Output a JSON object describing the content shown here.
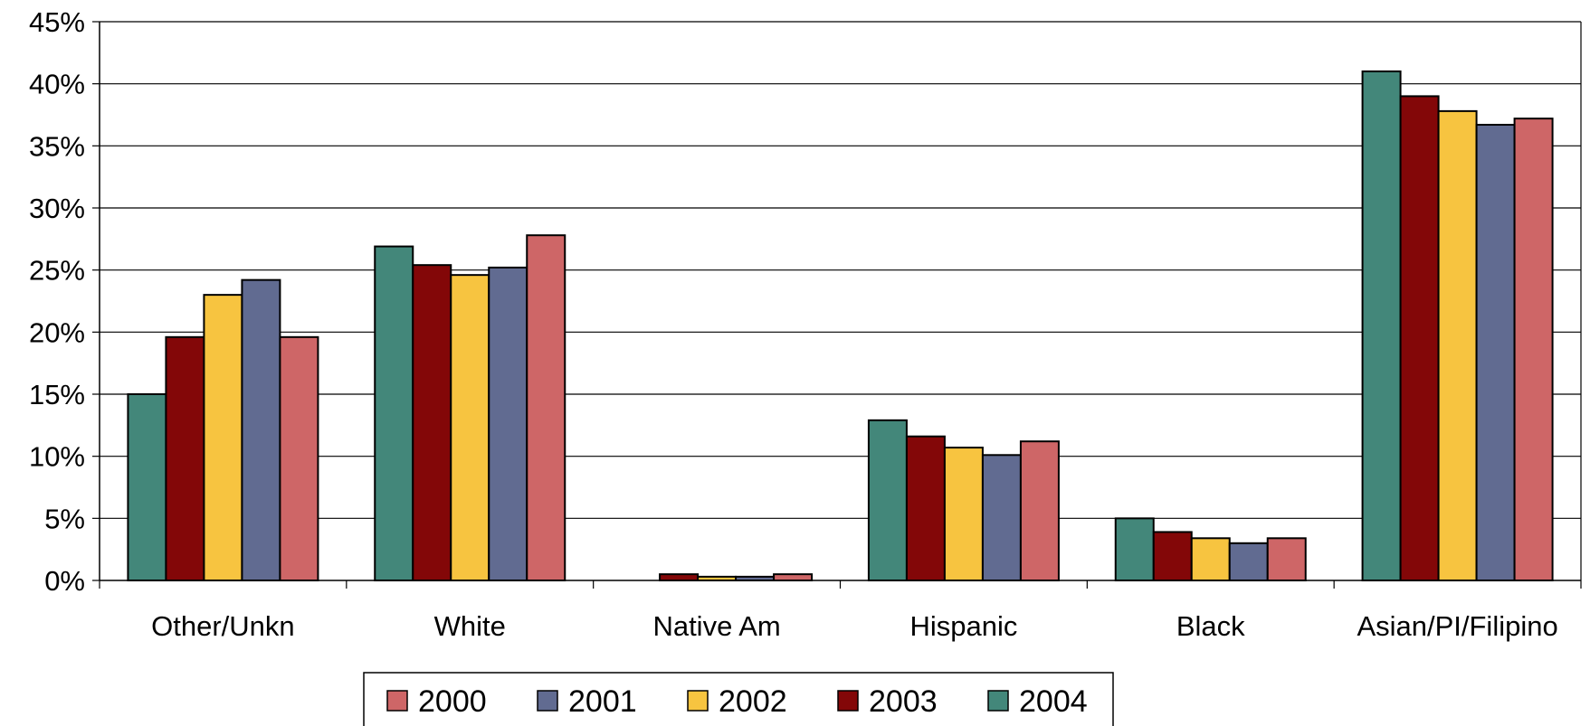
{
  "chart_data": {
    "type": "bar",
    "title": "",
    "xlabel": "",
    "ylabel": "",
    "categories": [
      "Other/Unkn",
      "White",
      "Native Am",
      "Hispanic",
      "Black",
      "Asian/PI/Filipino"
    ],
    "ylim": [
      0,
      45
    ],
    "y_ticks": [
      "0%",
      "5%",
      "10%",
      "15%",
      "20%",
      "25%",
      "30%",
      "35%",
      "40%",
      "45%"
    ],
    "grid": true,
    "legend_position": "bottom",
    "series": [
      {
        "name": "2004",
        "color": "#43877A",
        "values": [
          15.0,
          26.9,
          0.0,
          12.9,
          5.0,
          41.0
        ]
      },
      {
        "name": "2003",
        "color": "#830708",
        "values": [
          19.6,
          25.4,
          0.5,
          11.6,
          3.9,
          39.0
        ]
      },
      {
        "name": "2002",
        "color": "#F7C440",
        "values": [
          23.0,
          24.6,
          0.3,
          10.7,
          3.4,
          37.8
        ]
      },
      {
        "name": "2001",
        "color": "#616B91",
        "values": [
          24.2,
          25.2,
          0.3,
          10.1,
          3.0,
          36.7
        ]
      },
      {
        "name": "2000",
        "color": "#CE6667",
        "values": [
          19.6,
          27.8,
          0.5,
          11.2,
          3.4,
          37.2
        ]
      }
    ],
    "legend_order": [
      "2000",
      "2001",
      "2002",
      "2003",
      "2004"
    ]
  }
}
